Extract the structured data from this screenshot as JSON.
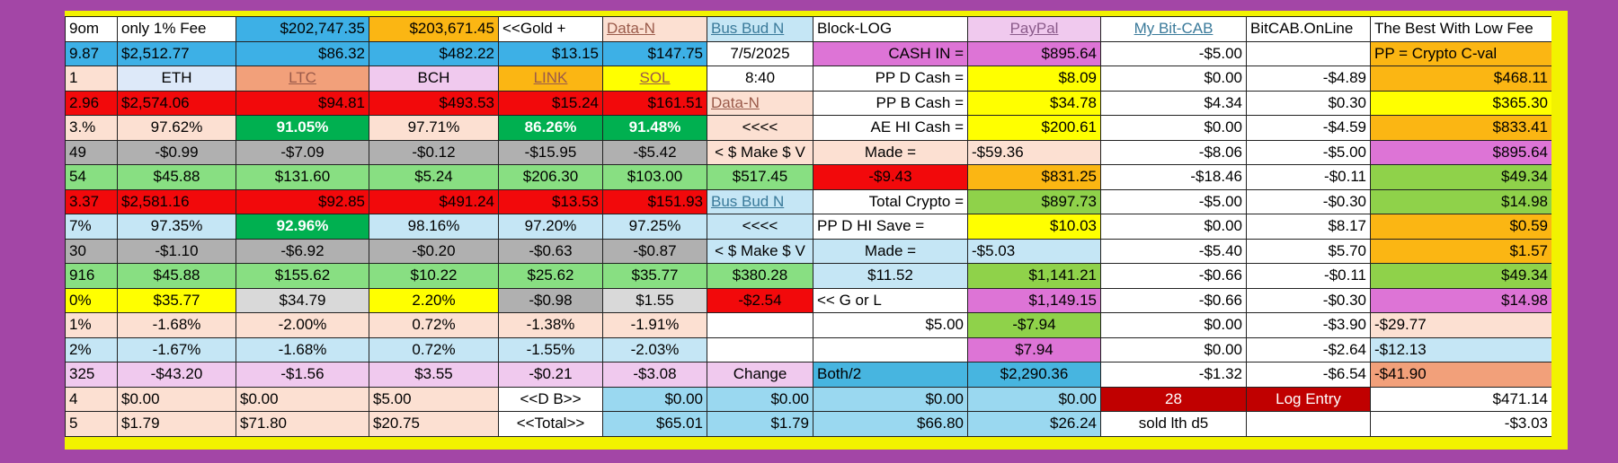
{
  "colors": {
    "background": "#a346a6",
    "white": "#ffffff",
    "peach": "#fce0d2",
    "lightblue": "#c5e6f5",
    "skyblue": "#3db0e6",
    "orange": "#fbb613",
    "red": "#f2090b",
    "darkred": "#c00000",
    "green": "#88df82",
    "darkgreen": "#00b050",
    "grey": "#b0b0b0",
    "lightgrey": "#d9d9d9",
    "pink": "#f0c9ee",
    "lilac": "#e5d4f1",
    "magenta": "#dd74d6",
    "yellow": "#ffff00",
    "salmon": "#f2a07a",
    "midgreen": "#8fd24a",
    "azure": "#47b5e0",
    "paleblue": "#dde9f9"
  },
  "rows": [
    [
      {
        "t": "9om",
        "bg": "#ffffff",
        "a": "l"
      },
      {
        "t": "only 1% Fee",
        "bg": "#ffffff",
        "a": "l"
      },
      {
        "t": "$202,747.35",
        "bg": "#3db0e6",
        "a": "r"
      },
      {
        "t": "$203,671.45",
        "bg": "#fbb613",
        "a": "r"
      },
      {
        "t": "<<Gold +",
        "bg": "#ffffff",
        "a": "l"
      },
      {
        "t": "Data-N",
        "bg": "#fce0d2",
        "a": "l",
        "s": "lnk2"
      },
      {
        "t": "Bus Bud N",
        "bg": "#c5e6f5",
        "a": "l",
        "s": "lnk"
      },
      {
        "t": "Block-LOG",
        "bg": "#ffffff",
        "a": "l"
      },
      {
        "t": "PayPal",
        "bg": "#f0c9ee",
        "a": "c",
        "s": "lnk3"
      },
      {
        "t": "My Bit-CAB",
        "bg": "#ffffff",
        "a": "c",
        "s": "lnk"
      },
      {
        "t": "BitCAB.OnLine",
        "bg": "#ffffff",
        "a": "l"
      },
      {
        "t": "The Best With Low Fee",
        "bg": "#ffffff",
        "a": "l"
      }
    ],
    [
      {
        "t": "9.87",
        "bg": "#3db0e6",
        "a": "l"
      },
      {
        "t": "$2,512.77",
        "bg": "#3db0e6",
        "a": "l"
      },
      {
        "t": "$86.32",
        "bg": "#3db0e6",
        "a": "r"
      },
      {
        "t": "$482.22",
        "bg": "#3db0e6",
        "a": "r"
      },
      {
        "t": "$13.15",
        "bg": "#3db0e6",
        "a": "r"
      },
      {
        "t": "$147.75",
        "bg": "#3db0e6",
        "a": "r"
      },
      {
        "t": "7/5/2025",
        "bg": "#ffffff",
        "a": "c"
      },
      {
        "t": "CASH IN =",
        "bg": "#dd74d6",
        "a": "r"
      },
      {
        "t": "$895.64",
        "bg": "#dd74d6",
        "a": "r"
      },
      {
        "t": "-$5.00",
        "bg": "#ffffff",
        "a": "r"
      },
      {
        "t": "",
        "bg": "#ffffff",
        "a": "r"
      },
      {
        "t": "PP = Crypto C-val",
        "bg": "#fbb613",
        "a": "l"
      }
    ],
    [
      {
        "t": "1",
        "bg": "#fce0d2",
        "a": "l"
      },
      {
        "t": "ETH",
        "bg": "#dde9f9",
        "a": "c"
      },
      {
        "t": "LTC",
        "bg": "#f2a07a",
        "a": "c",
        "s": "lnk2"
      },
      {
        "t": "BCH",
        "bg": "#f0c9ee",
        "a": "c"
      },
      {
        "t": "LINK",
        "bg": "#fbb613",
        "a": "c",
        "s": "lnk2"
      },
      {
        "t": "SOL",
        "bg": "#ffff00",
        "a": "c",
        "s": "lnk2"
      },
      {
        "t": "8:40",
        "bg": "#ffffff",
        "a": "c"
      },
      {
        "t": "PP  D  Cash =",
        "bg": "#ffffff",
        "a": "r"
      },
      {
        "t": "$8.09",
        "bg": "#ffff00",
        "a": "r"
      },
      {
        "t": "$0.00",
        "bg": "#ffffff",
        "a": "r"
      },
      {
        "t": "-$4.89",
        "bg": "#ffffff",
        "a": "r"
      },
      {
        "t": "$468.11",
        "bg": "#fbb613",
        "a": "r"
      }
    ],
    [
      {
        "t": "2.96",
        "bg": "#f2090b",
        "a": "l"
      },
      {
        "t": "$2,574.06",
        "bg": "#f2090b",
        "a": "l"
      },
      {
        "t": "$94.81",
        "bg": "#f2090b",
        "a": "r"
      },
      {
        "t": "$493.53",
        "bg": "#f2090b",
        "a": "r"
      },
      {
        "t": "$15.24",
        "bg": "#f2090b",
        "a": "r"
      },
      {
        "t": "$161.51",
        "bg": "#f2090b",
        "a": "r"
      },
      {
        "t": "Data-N",
        "bg": "#fce0d2",
        "a": "l",
        "s": "lnk2"
      },
      {
        "t": "PP  B  Cash =",
        "bg": "#ffffff",
        "a": "r"
      },
      {
        "t": "$34.78",
        "bg": "#ffff00",
        "a": "r"
      },
      {
        "t": "$4.34",
        "bg": "#ffffff",
        "a": "r"
      },
      {
        "t": "$0.30",
        "bg": "#ffffff",
        "a": "r"
      },
      {
        "t": "$365.30",
        "bg": "#ffff00",
        "a": "r"
      }
    ],
    [
      {
        "t": "3.%",
        "bg": "#fce0d2",
        "a": "l"
      },
      {
        "t": "97.62%",
        "bg": "#fce0d2",
        "a": "c"
      },
      {
        "t": "91.05%",
        "bg": "#00b050",
        "a": "c",
        "s": "b w"
      },
      {
        "t": "97.71%",
        "bg": "#fce0d2",
        "a": "c"
      },
      {
        "t": "86.26%",
        "bg": "#00b050",
        "a": "c",
        "s": "b w"
      },
      {
        "t": "91.48%",
        "bg": "#00b050",
        "a": "c",
        "s": "b w"
      },
      {
        "t": "<<<<",
        "bg": "#fce0d2",
        "a": "c"
      },
      {
        "t": "AE HI Cash =",
        "bg": "#ffffff",
        "a": "r"
      },
      {
        "t": "$200.61",
        "bg": "#ffff00",
        "a": "r"
      },
      {
        "t": "$0.00",
        "bg": "#ffffff",
        "a": "r"
      },
      {
        "t": "-$4.59",
        "bg": "#ffffff",
        "a": "r"
      },
      {
        "t": "$833.41",
        "bg": "#fbb613",
        "a": "r"
      }
    ],
    [
      {
        "t": "49",
        "bg": "#b0b0b0",
        "a": "l"
      },
      {
        "t": "-$0.99",
        "bg": "#b0b0b0",
        "a": "c"
      },
      {
        "t": "-$7.09",
        "bg": "#b0b0b0",
        "a": "c"
      },
      {
        "t": "-$0.12",
        "bg": "#b0b0b0",
        "a": "c"
      },
      {
        "t": "-$15.95",
        "bg": "#b0b0b0",
        "a": "c"
      },
      {
        "t": "-$5.42",
        "bg": "#b0b0b0",
        "a": "c"
      },
      {
        "t": "< $ Make $ V",
        "bg": "#fce0d2",
        "a": "c"
      },
      {
        "t": "Made =",
        "bg": "#fce0d2",
        "a": "c"
      },
      {
        "t": "-$59.36",
        "bg": "#fce0d2",
        "a": "l"
      },
      {
        "t": "-$8.06",
        "bg": "#ffffff",
        "a": "r"
      },
      {
        "t": "-$5.00",
        "bg": "#ffffff",
        "a": "r"
      },
      {
        "t": "$895.64",
        "bg": "#dd74d6",
        "a": "r"
      }
    ],
    [
      {
        "t": "54",
        "bg": "#88df82",
        "a": "l"
      },
      {
        "t": "$45.88",
        "bg": "#88df82",
        "a": "c"
      },
      {
        "t": "$131.60",
        "bg": "#88df82",
        "a": "c"
      },
      {
        "t": "$5.24",
        "bg": "#88df82",
        "a": "c"
      },
      {
        "t": "$206.30",
        "bg": "#88df82",
        "a": "c"
      },
      {
        "t": "$103.00",
        "bg": "#88df82",
        "a": "c"
      },
      {
        "t": "$517.45",
        "bg": "#88df82",
        "a": "c"
      },
      {
        "t": "-$9.43",
        "bg": "#f2090b",
        "a": "c"
      },
      {
        "t": "$831.25",
        "bg": "#fbb613",
        "a": "r"
      },
      {
        "t": "-$18.46",
        "bg": "#ffffff",
        "a": "r"
      },
      {
        "t": "-$0.11",
        "bg": "#ffffff",
        "a": "r"
      },
      {
        "t": "$49.34",
        "bg": "#8fd24a",
        "a": "r"
      }
    ],
    [
      {
        "t": "3.37",
        "bg": "#f2090b",
        "a": "l"
      },
      {
        "t": "$2,581.16",
        "bg": "#f2090b",
        "a": "l"
      },
      {
        "t": "$92.85",
        "bg": "#f2090b",
        "a": "r"
      },
      {
        "t": "$491.24",
        "bg": "#f2090b",
        "a": "r"
      },
      {
        "t": "$13.53",
        "bg": "#f2090b",
        "a": "r"
      },
      {
        "t": "$151.93",
        "bg": "#f2090b",
        "a": "r"
      },
      {
        "t": "Bus Bud N",
        "bg": "#c5e6f5",
        "a": "l",
        "s": "lnk"
      },
      {
        "t": "Total Crypto =",
        "bg": "#ffffff",
        "a": "r"
      },
      {
        "t": "$897.73",
        "bg": "#8fd24a",
        "a": "r"
      },
      {
        "t": "-$5.00",
        "bg": "#ffffff",
        "a": "r"
      },
      {
        "t": "-$0.30",
        "bg": "#ffffff",
        "a": "r"
      },
      {
        "t": "$14.98",
        "bg": "#8fd24a",
        "a": "r"
      }
    ],
    [
      {
        "t": "7%",
        "bg": "#c5e6f5",
        "a": "l"
      },
      {
        "t": "97.35%",
        "bg": "#c5e6f5",
        "a": "c"
      },
      {
        "t": "92.96%",
        "bg": "#00b050",
        "a": "c",
        "s": "b w"
      },
      {
        "t": "98.16%",
        "bg": "#c5e6f5",
        "a": "c"
      },
      {
        "t": "97.20%",
        "bg": "#c5e6f5",
        "a": "c"
      },
      {
        "t": "97.25%",
        "bg": "#c5e6f5",
        "a": "c"
      },
      {
        "t": "<<<<",
        "bg": "#c5e6f5",
        "a": "c"
      },
      {
        "t": "PP D HI Save =",
        "bg": "#ffffff",
        "a": "l"
      },
      {
        "t": "$10.03",
        "bg": "#ffff00",
        "a": "r"
      },
      {
        "t": "$0.00",
        "bg": "#ffffff",
        "a": "r"
      },
      {
        "t": "$8.17",
        "bg": "#ffffff",
        "a": "r"
      },
      {
        "t": "$0.59",
        "bg": "#fbb613",
        "a": "r"
      }
    ],
    [
      {
        "t": "30",
        "bg": "#b0b0b0",
        "a": "l"
      },
      {
        "t": "-$1.10",
        "bg": "#b0b0b0",
        "a": "c"
      },
      {
        "t": "-$6.92",
        "bg": "#b0b0b0",
        "a": "c"
      },
      {
        "t": "-$0.20",
        "bg": "#b0b0b0",
        "a": "c"
      },
      {
        "t": "-$0.63",
        "bg": "#b0b0b0",
        "a": "c"
      },
      {
        "t": "-$0.87",
        "bg": "#b0b0b0",
        "a": "c"
      },
      {
        "t": "< $ Make $ V",
        "bg": "#c5e6f5",
        "a": "c"
      },
      {
        "t": "Made =",
        "bg": "#c5e6f5",
        "a": "c"
      },
      {
        "t": "-$5.03",
        "bg": "#c5e6f5",
        "a": "l"
      },
      {
        "t": "-$5.40",
        "bg": "#ffffff",
        "a": "r"
      },
      {
        "t": "$5.70",
        "bg": "#ffffff",
        "a": "r"
      },
      {
        "t": "$1.57",
        "bg": "#fbb613",
        "a": "r"
      }
    ],
    [
      {
        "t": "916",
        "bg": "#88df82",
        "a": "l"
      },
      {
        "t": "$45.88",
        "bg": "#88df82",
        "a": "c"
      },
      {
        "t": "$155.62",
        "bg": "#88df82",
        "a": "c"
      },
      {
        "t": "$10.22",
        "bg": "#88df82",
        "a": "c"
      },
      {
        "t": "$25.62",
        "bg": "#88df82",
        "a": "c"
      },
      {
        "t": "$35.77",
        "bg": "#88df82",
        "a": "c"
      },
      {
        "t": "$380.28",
        "bg": "#88df82",
        "a": "c"
      },
      {
        "t": "$11.52",
        "bg": "#c5e6f5",
        "a": "c"
      },
      {
        "t": "$1,141.21",
        "bg": "#8fd24a",
        "a": "r"
      },
      {
        "t": "-$0.66",
        "bg": "#ffffff",
        "a": "r"
      },
      {
        "t": "-$0.11",
        "bg": "#ffffff",
        "a": "r"
      },
      {
        "t": "$49.34",
        "bg": "#8fd24a",
        "a": "r"
      }
    ],
    [
      {
        "t": "0%",
        "bg": "#ffff00",
        "a": "l"
      },
      {
        "t": "$35.77",
        "bg": "#ffff00",
        "a": "c"
      },
      {
        "t": "$34.79",
        "bg": "#d9d9d9",
        "a": "c"
      },
      {
        "t": "2.20%",
        "bg": "#ffff00",
        "a": "c"
      },
      {
        "t": "-$0.98",
        "bg": "#b0b0b0",
        "a": "c"
      },
      {
        "t": "$1.55",
        "bg": "#d9d9d9",
        "a": "c"
      },
      {
        "t": "-$2.54",
        "bg": "#f2090b",
        "a": "c"
      },
      {
        "t": "<< G or L",
        "bg": "#ffffff",
        "a": "l"
      },
      {
        "t": "$1,149.15",
        "bg": "#dd74d6",
        "a": "r"
      },
      {
        "t": "-$0.66",
        "bg": "#ffffff",
        "a": "r"
      },
      {
        "t": "-$0.30",
        "bg": "#ffffff",
        "a": "r"
      },
      {
        "t": "$14.98",
        "bg": "#dd74d6",
        "a": "r"
      }
    ],
    [
      {
        "t": "1%",
        "bg": "#fce0d2",
        "a": "l"
      },
      {
        "t": "-1.68%",
        "bg": "#fce0d2",
        "a": "c"
      },
      {
        "t": "-2.00%",
        "bg": "#fce0d2",
        "a": "c"
      },
      {
        "t": "0.72%",
        "bg": "#fce0d2",
        "a": "c"
      },
      {
        "t": "-1.38%",
        "bg": "#fce0d2",
        "a": "c"
      },
      {
        "t": "-1.91%",
        "bg": "#fce0d2",
        "a": "c"
      },
      {
        "t": "",
        "bg": "#ffffff",
        "a": "c"
      },
      {
        "t": "$5.00",
        "bg": "#ffffff",
        "a": "r"
      },
      {
        "t": "-$7.94",
        "bg": "#8fd24a",
        "a": "c"
      },
      {
        "t": "$0.00",
        "bg": "#ffffff",
        "a": "r"
      },
      {
        "t": "-$3.90",
        "bg": "#ffffff",
        "a": "r"
      },
      {
        "t": "-$29.77",
        "bg": "#fce0d2",
        "a": "l"
      }
    ],
    [
      {
        "t": "2%",
        "bg": "#c5e6f5",
        "a": "l"
      },
      {
        "t": "-1.67%",
        "bg": "#c5e6f5",
        "a": "c"
      },
      {
        "t": "-1.68%",
        "bg": "#c5e6f5",
        "a": "c"
      },
      {
        "t": "0.72%",
        "bg": "#c5e6f5",
        "a": "c"
      },
      {
        "t": "-1.55%",
        "bg": "#c5e6f5",
        "a": "c"
      },
      {
        "t": "-2.03%",
        "bg": "#c5e6f5",
        "a": "c"
      },
      {
        "t": "",
        "bg": "#ffffff",
        "a": "c"
      },
      {
        "t": "",
        "bg": "#ffffff",
        "a": "c"
      },
      {
        "t": "$7.94",
        "bg": "#dd74d6",
        "a": "c"
      },
      {
        "t": "$0.00",
        "bg": "#ffffff",
        "a": "r"
      },
      {
        "t": "-$2.64",
        "bg": "#ffffff",
        "a": "r"
      },
      {
        "t": "-$12.13",
        "bg": "#c5e6f5",
        "a": "l"
      }
    ],
    [
      {
        "t": "325",
        "bg": "#f0c9ee",
        "a": "l"
      },
      {
        "t": "-$43.20",
        "bg": "#f0c9ee",
        "a": "c"
      },
      {
        "t": "-$1.56",
        "bg": "#f0c9ee",
        "a": "c"
      },
      {
        "t": "$3.55",
        "bg": "#f0c9ee",
        "a": "c"
      },
      {
        "t": "-$0.21",
        "bg": "#f0c9ee",
        "a": "c"
      },
      {
        "t": "-$3.08",
        "bg": "#f0c9ee",
        "a": "c"
      },
      {
        "t": "Change",
        "bg": "#f0c9ee",
        "a": "c"
      },
      {
        "t": "Both/2",
        "bg": "#47b5e0",
        "a": "l"
      },
      {
        "t": "$2,290.36",
        "bg": "#47b5e0",
        "a": "c"
      },
      {
        "t": "-$1.32",
        "bg": "#ffffff",
        "a": "r"
      },
      {
        "t": "-$6.54",
        "bg": "#ffffff",
        "a": "r"
      },
      {
        "t": "-$41.90",
        "bg": "#f2a07a",
        "a": "l"
      }
    ],
    [
      {
        "t": "4",
        "bg": "#fce0d2",
        "a": "l"
      },
      {
        "t": "$0.00",
        "bg": "#fce0d2",
        "a": "l"
      },
      {
        "t": "$0.00",
        "bg": "#fce0d2",
        "a": "l"
      },
      {
        "t": "$5.00",
        "bg": "#fce0d2",
        "a": "l"
      },
      {
        "t": "<<D  B>>",
        "bg": "#ffffff",
        "a": "c"
      },
      {
        "t": "$0.00",
        "bg": "#9ad8f0",
        "a": "r"
      },
      {
        "t": "$0.00",
        "bg": "#9ad8f0",
        "a": "r"
      },
      {
        "t": "$0.00",
        "bg": "#9ad8f0",
        "a": "r"
      },
      {
        "t": "$0.00",
        "bg": "#9ad8f0",
        "a": "r"
      },
      {
        "t": "28",
        "bg": "#c00000",
        "a": "c",
        "s": "w"
      },
      {
        "t": "Log Entry",
        "bg": "#c00000",
        "a": "c",
        "s": "w"
      },
      {
        "t": "$471.14",
        "bg": "#ffffff",
        "a": "r"
      }
    ],
    [
      {
        "t": "5",
        "bg": "#fce0d2",
        "a": "l"
      },
      {
        "t": "$1.79",
        "bg": "#fce0d2",
        "a": "l"
      },
      {
        "t": "$71.80",
        "bg": "#fce0d2",
        "a": "l"
      },
      {
        "t": "$20.75",
        "bg": "#fce0d2",
        "a": "l"
      },
      {
        "t": "<<Total>>",
        "bg": "#ffffff",
        "a": "c"
      },
      {
        "t": "$65.01",
        "bg": "#9ad8f0",
        "a": "r"
      },
      {
        "t": "$1.79",
        "bg": "#9ad8f0",
        "a": "r"
      },
      {
        "t": "$66.80",
        "bg": "#9ad8f0",
        "a": "r"
      },
      {
        "t": "$26.24",
        "bg": "#9ad8f0",
        "a": "r"
      },
      {
        "t": "sold lth d5",
        "bg": "#ffffff",
        "a": "c"
      },
      {
        "t": "",
        "bg": "#ffffff",
        "a": "c"
      },
      {
        "t": "-$3.03",
        "bg": "#ffffff",
        "a": "r"
      }
    ]
  ]
}
